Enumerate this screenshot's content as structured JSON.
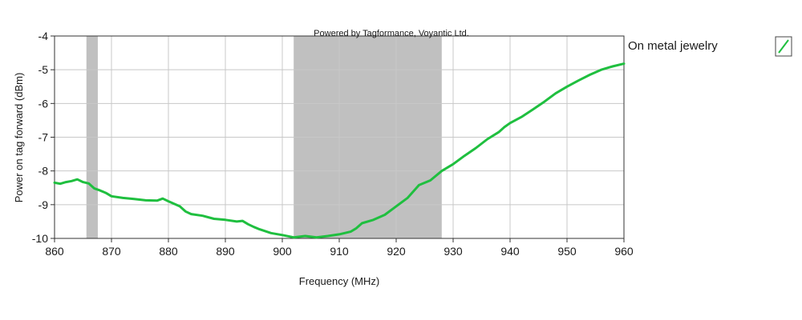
{
  "chart_data": {
    "type": "line",
    "credit": "Powered by Tagformance, Voyantic Ltd.",
    "xlabel": "Frequency (MHz)",
    "ylabel": "Power on tag forward (dBm)",
    "xlim": [
      860,
      960
    ],
    "ylim": [
      -10,
      -4
    ],
    "x_ticks": [
      "860",
      "870",
      "880",
      "890",
      "900",
      "910",
      "920",
      "930",
      "940",
      "950",
      "960"
    ],
    "y_ticks": [
      "-4",
      "-5",
      "-6",
      "-7",
      "-8",
      "-9",
      "-10"
    ],
    "grid": true,
    "shaded_bands": [
      {
        "x_start": 865.6,
        "x_end": 867.6
      },
      {
        "x_start": 902,
        "x_end": 928
      }
    ],
    "series": [
      {
        "name": "On metal jewelry",
        "color": "#1fbf3f",
        "x": [
          860,
          861,
          862,
          863,
          864,
          865,
          866,
          867,
          868,
          869,
          870,
          872,
          874,
          876,
          878,
          879,
          880,
          882,
          883,
          884,
          886,
          888,
          890,
          892,
          893,
          894,
          895,
          896,
          898,
          900,
          902,
          904,
          906,
          908,
          910,
          912,
          913,
          914,
          916,
          918,
          920,
          922,
          924,
          926,
          928,
          930,
          932,
          934,
          936,
          938,
          939,
          940,
          942,
          944,
          946,
          948,
          950,
          952,
          954,
          956,
          958,
          960
        ],
        "y": [
          -8.35,
          -8.38,
          -8.33,
          -8.3,
          -8.25,
          -8.33,
          -8.37,
          -8.52,
          -8.58,
          -8.65,
          -8.75,
          -8.8,
          -8.83,
          -8.87,
          -8.88,
          -8.82,
          -8.9,
          -9.05,
          -9.2,
          -9.28,
          -9.33,
          -9.42,
          -9.45,
          -9.5,
          -9.48,
          -9.58,
          -9.66,
          -9.73,
          -9.84,
          -9.9,
          -9.97,
          -9.93,
          -9.97,
          -9.93,
          -9.88,
          -9.8,
          -9.7,
          -9.55,
          -9.45,
          -9.3,
          -9.05,
          -8.8,
          -8.42,
          -8.28,
          -8.0,
          -7.8,
          -7.55,
          -7.32,
          -7.06,
          -6.85,
          -6.7,
          -6.58,
          -6.4,
          -6.18,
          -5.95,
          -5.7,
          -5.5,
          -5.32,
          -5.15,
          -5.0,
          -4.9,
          -4.82
        ]
      }
    ],
    "legend_position": "right"
  }
}
